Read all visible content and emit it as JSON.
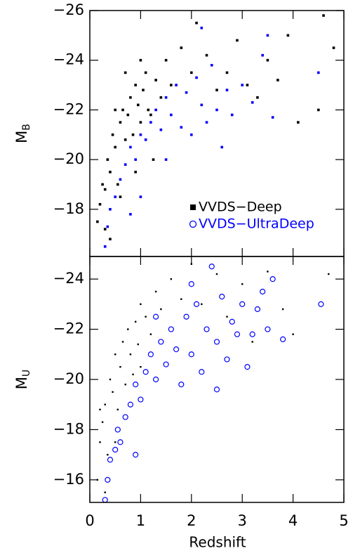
{
  "chart_data": [
    {
      "type": "scatter",
      "ylabel_symbol": "M",
      "ylabel_subscript": "B",
      "xlim": [
        0,
        5
      ],
      "ylim": [
        -16.1,
        -26
      ],
      "yticks": [
        {
          "value": -18,
          "label": "−18"
        },
        {
          "value": -20,
          "label": "−20"
        },
        {
          "value": -22,
          "label": "−22"
        },
        {
          "value": -24,
          "label": "−24"
        },
        {
          "value": -26,
          "label": "−26"
        }
      ],
      "legend": "lower right",
      "series": [
        {
          "name": "VVDS−Deep",
          "color": "#000000",
          "marker": "square",
          "x": [
            0.15,
            0.2,
            0.25,
            0.3,
            0.35,
            0.4,
            0.45,
            0.5,
            0.55,
            0.6,
            0.65,
            0.7,
            0.75,
            0.8,
            0.85,
            0.9,
            0.95,
            1.0,
            1.05,
            1.1,
            1.15,
            1.2,
            1.3,
            1.4,
            1.5,
            1.6,
            1.8,
            2.0,
            2.1,
            2.3,
            2.5,
            2.7,
            2.9,
            3.1,
            3.3,
            3.5,
            3.7,
            3.9,
            4.1,
            4.5,
            4.6,
            4.8,
            0.3,
            0.5,
            0.7,
            0.4,
            0.6,
            0.9,
            1.0,
            1.25
          ],
          "y": [
            -17.5,
            -18.2,
            -19,
            -17.2,
            -20,
            -19.5,
            -21,
            -20.5,
            -19,
            -21.5,
            -22,
            -20.8,
            -21.8,
            -22.5,
            -21,
            -23,
            -22.2,
            -21.5,
            -22.8,
            -23.5,
            -22,
            -21.8,
            -23.2,
            -22.5,
            -24,
            -23,
            -24.5,
            -23.5,
            -25.5,
            -24.2,
            -22.8,
            -23.5,
            -24.8,
            -23,
            -22.5,
            -24,
            -23.2,
            -25,
            -21.5,
            -22,
            -25.8,
            -24.5,
            -18.8,
            -22,
            -23.5,
            -16.8,
            -18.5,
            -19.5,
            -24,
            -20
          ]
        },
        {
          "name": "VVDS−UltraDeep",
          "color": "#0000ff",
          "marker": "square",
          "x": [
            0.3,
            0.35,
            0.4,
            0.5,
            0.6,
            0.7,
            0.8,
            0.9,
            1.0,
            1.1,
            1.2,
            1.3,
            1.4,
            1.5,
            1.6,
            1.7,
            1.8,
            1.9,
            2.0,
            2.1,
            2.2,
            2.3,
            2.4,
            2.5,
            2.6,
            2.7,
            2.8,
            3.0,
            3.2,
            3.4,
            3.6,
            4.5,
            1.0,
            0.8,
            1.5,
            2.2,
            3.5
          ],
          "y": [
            -16.5,
            -17.3,
            -18,
            -18.5,
            -19.2,
            -19.8,
            -20.5,
            -20,
            -21,
            -20.8,
            -21.5,
            -22,
            -21.2,
            -22.5,
            -21.8,
            -23,
            -21.3,
            -22.7,
            -21,
            -23.3,
            -22.2,
            -21.5,
            -23.8,
            -22,
            -20.5,
            -22.8,
            -21.8,
            -23,
            -22.3,
            -24.2,
            -21.7,
            -23.5,
            -18.5,
            -17.8,
            -20,
            -25.3,
            -25
          ]
        }
      ]
    },
    {
      "type": "scatter",
      "ylabel_symbol": "M",
      "ylabel_subscript": "U",
      "xlabel": "Redshift",
      "xlim": [
        0,
        5
      ],
      "ylim": [
        -15.1,
        -24.9
      ],
      "xticks": [
        0,
        1,
        2,
        3,
        4,
        5
      ],
      "yticks": [
        {
          "value": -16,
          "label": "−16"
        },
        {
          "value": -18,
          "label": "−18"
        },
        {
          "value": -20,
          "label": "−20"
        },
        {
          "value": -22,
          "label": "−22"
        },
        {
          "value": -24,
          "label": "−24"
        }
      ],
      "series": [
        {
          "color": "#000000",
          "marker": "dot",
          "x": [
            0.15,
            0.2,
            0.25,
            0.3,
            0.35,
            0.4,
            0.45,
            0.5,
            0.55,
            0.6,
            0.65,
            0.7,
            0.75,
            0.8,
            0.85,
            0.9,
            0.95,
            1.0,
            1.1,
            1.2,
            1.3,
            1.4,
            1.6,
            1.8,
            2.0,
            2.2,
            2.5,
            2.7,
            3.0,
            3.2,
            3.5,
            3.8,
            4.0,
            4.7,
            0.3,
            0.5,
            1.0,
            0.2
          ],
          "y": [
            -16,
            -17.5,
            -18.3,
            -19,
            -17,
            -20,
            -19.5,
            -21,
            -18.8,
            -20.5,
            -21.5,
            -19.8,
            -22,
            -21,
            -20.2,
            -22.3,
            -21.4,
            -23,
            -22.5,
            -21.8,
            -23.5,
            -22.8,
            -24,
            -23.2,
            -24.6,
            -23,
            -24.2,
            -22.5,
            -23.8,
            -21.5,
            -24.3,
            -22.8,
            -21.8,
            -24.2,
            -15.5,
            -17.5,
            -20.5,
            -18.8
          ]
        },
        {
          "color": "#0000ff",
          "marker": "circle",
          "x": [
            0.3,
            0.35,
            0.4,
            0.5,
            0.55,
            0.6,
            0.7,
            0.8,
            0.9,
            1.0,
            1.1,
            1.2,
            1.3,
            1.4,
            1.5,
            1.6,
            1.7,
            1.8,
            1.9,
            2.0,
            2.1,
            2.2,
            2.3,
            2.4,
            2.5,
            2.6,
            2.7,
            2.8,
            2.9,
            3.0,
            3.1,
            3.2,
            3.4,
            3.5,
            3.6,
            3.8,
            4.55,
            0.9,
            1.3,
            2.0,
            2.5,
            3.3
          ],
          "y": [
            -15.2,
            -16,
            -16.8,
            -17.2,
            -18,
            -17.5,
            -18.5,
            -19,
            -19.8,
            -19.2,
            -20.3,
            -21,
            -20,
            -21.5,
            -20.6,
            -22,
            -21.2,
            -19.8,
            -22.5,
            -21,
            -23,
            -20.3,
            -22,
            -24.5,
            -21.5,
            -23.3,
            -20.8,
            -22.3,
            -21.8,
            -23,
            -20.5,
            -21.8,
            -23.5,
            -22,
            -24,
            -21.6,
            -23,
            -17,
            -22.5,
            -23.8,
            -19.6,
            -22.8
          ]
        }
      ]
    }
  ]
}
